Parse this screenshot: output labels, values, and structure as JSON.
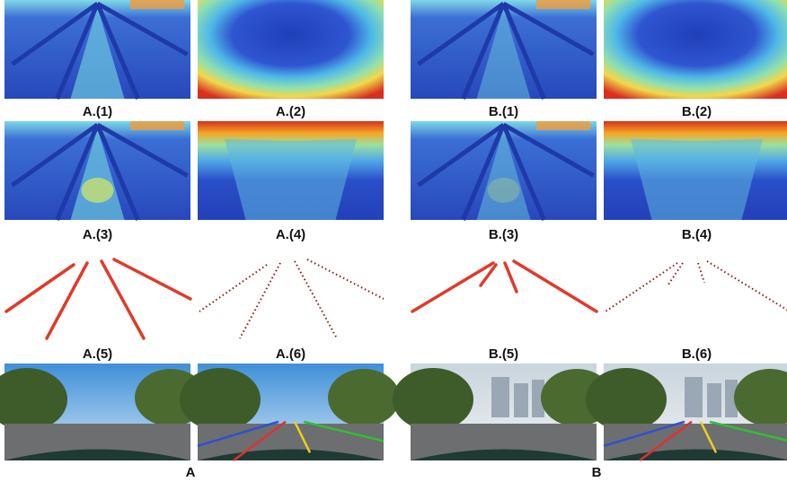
{
  "groups": [
    {
      "caption": "A",
      "panels": [
        "A.(1)",
        "A.(2)",
        "A.(3)",
        "A.(4)",
        "A.(5)",
        "A.(6)"
      ]
    },
    {
      "caption": "B",
      "panels": [
        "B.(1)",
        "B.(2)",
        "B.(3)",
        "B.(4)",
        "B.(5)",
        "B.(6)"
      ]
    }
  ]
}
